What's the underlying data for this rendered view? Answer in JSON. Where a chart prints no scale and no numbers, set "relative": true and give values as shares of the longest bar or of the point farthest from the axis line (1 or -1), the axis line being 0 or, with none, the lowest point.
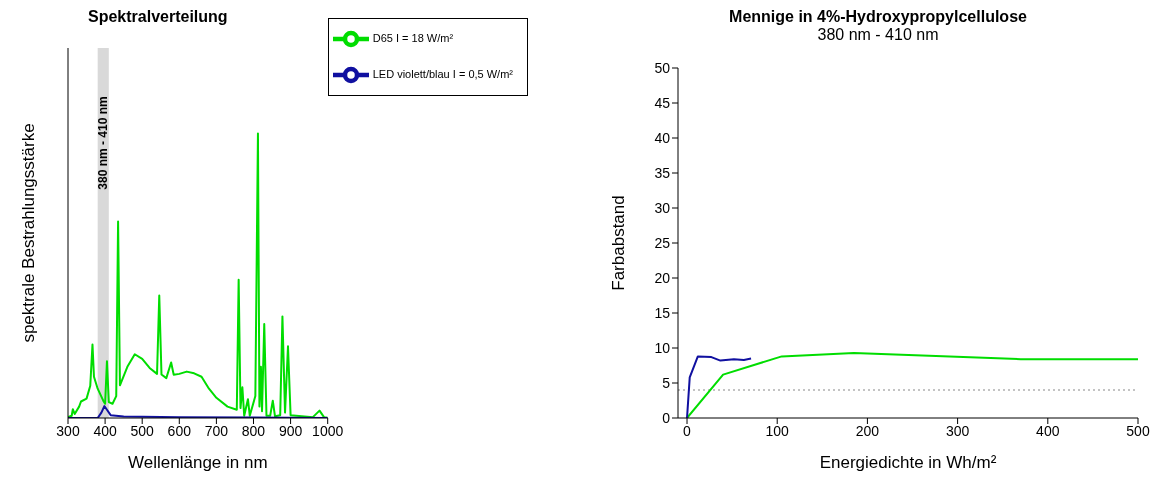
{
  "chart_data": [
    {
      "type": "line",
      "title": "Spektralverteilung",
      "xlabel": "Wellenlänge in nm",
      "ylabel": "spektrale Bestrahlungsstärke",
      "relative": true,
      "xlim": [
        300,
        1000
      ],
      "xticks": [
        300,
        400,
        500,
        600,
        700,
        800,
        900,
        1000
      ],
      "legend": "top right",
      "bands": [
        {
          "axis": "x",
          "from": 380,
          "to": 410,
          "label": "380 nm - 410 nm",
          "color": "#d9d9d9"
        }
      ],
      "series": [
        {
          "name": "D65 I = 18 W/m²",
          "color": "#00dd00",
          "x": [
            300,
            310,
            313,
            318,
            330,
            335,
            350,
            360,
            366,
            370,
            380,
            395,
            400,
            405,
            410,
            420,
            430,
            435,
            440,
            460,
            480,
            500,
            520,
            540,
            546,
            552,
            565,
            578,
            585,
            600,
            620,
            640,
            660,
            680,
            700,
            730,
            755,
            760,
            765,
            770,
            775,
            785,
            790,
            805,
            812,
            816,
            820,
            823,
            829,
            835,
            845,
            852,
            858,
            872,
            878,
            885,
            893,
            900,
            960,
            978,
            990,
            1000
          ],
          "values": [
            0.003,
            0.008,
            0.031,
            0.014,
            0.04,
            0.058,
            0.068,
            0.113,
            0.258,
            0.145,
            0.103,
            0.061,
            0.05,
            0.199,
            0.056,
            0.05,
            0.077,
            0.69,
            0.115,
            0.18,
            0.224,
            0.208,
            0.176,
            0.155,
            0.43,
            0.153,
            0.14,
            0.195,
            0.152,
            0.155,
            0.163,
            0.157,
            0.145,
            0.103,
            0.071,
            0.04,
            0.029,
            0.486,
            0.035,
            0.108,
            0.008,
            0.066,
            0.008,
            0.077,
            1,
            0.04,
            0.18,
            0.024,
            0.33,
            0.008,
            0.008,
            0.061,
            0.006,
            0.01,
            0.357,
            0.019,
            0.252,
            0.01,
            0.003,
            0.026,
            0.003,
            0.001
          ]
        },
        {
          "name": "LED violett/blau I = 0,5 W/m²",
          "color": "#1010a0",
          "x": [
            300,
            380,
            390,
            398,
            405,
            415,
            450,
            600,
            1000
          ],
          "values": [
            0,
            0,
            0.019,
            0.042,
            0.029,
            0.01,
            0.005,
            0.003,
            0
          ]
        }
      ]
    },
    {
      "type": "line",
      "title": "Mennige in 4%-Hydroxypropylcellulose",
      "subtitle": "380 nm - 410 nm",
      "xlabel": "Energiedichte in Wh/m²",
      "ylabel": "Farbabstand",
      "xlim": [
        -10,
        500
      ],
      "xticks": [
        0,
        100,
        200,
        300,
        400,
        500
      ],
      "ylim": [
        0,
        50
      ],
      "yticks": [
        0,
        5,
        10,
        15,
        20,
        25,
        30,
        35,
        40,
        45,
        50
      ],
      "ref_lines": [
        {
          "axis": "y",
          "value": 4,
          "color": "#888888",
          "line_style": "dotted"
        }
      ],
      "series": [
        {
          "color": "#00dd00",
          "x": [
            0,
            40,
            105,
            185,
            370,
            500
          ],
          "values": [
            0,
            6.2,
            8.8,
            9.3,
            8.4,
            8.4
          ]
        },
        {
          "color": "#1010a0",
          "x": [
            0,
            3,
            12,
            27,
            37,
            52,
            63,
            71
          ],
          "values": [
            0,
            5.8,
            8.8,
            8.7,
            8.2,
            8.4,
            8.3,
            8.5
          ]
        }
      ]
    }
  ]
}
